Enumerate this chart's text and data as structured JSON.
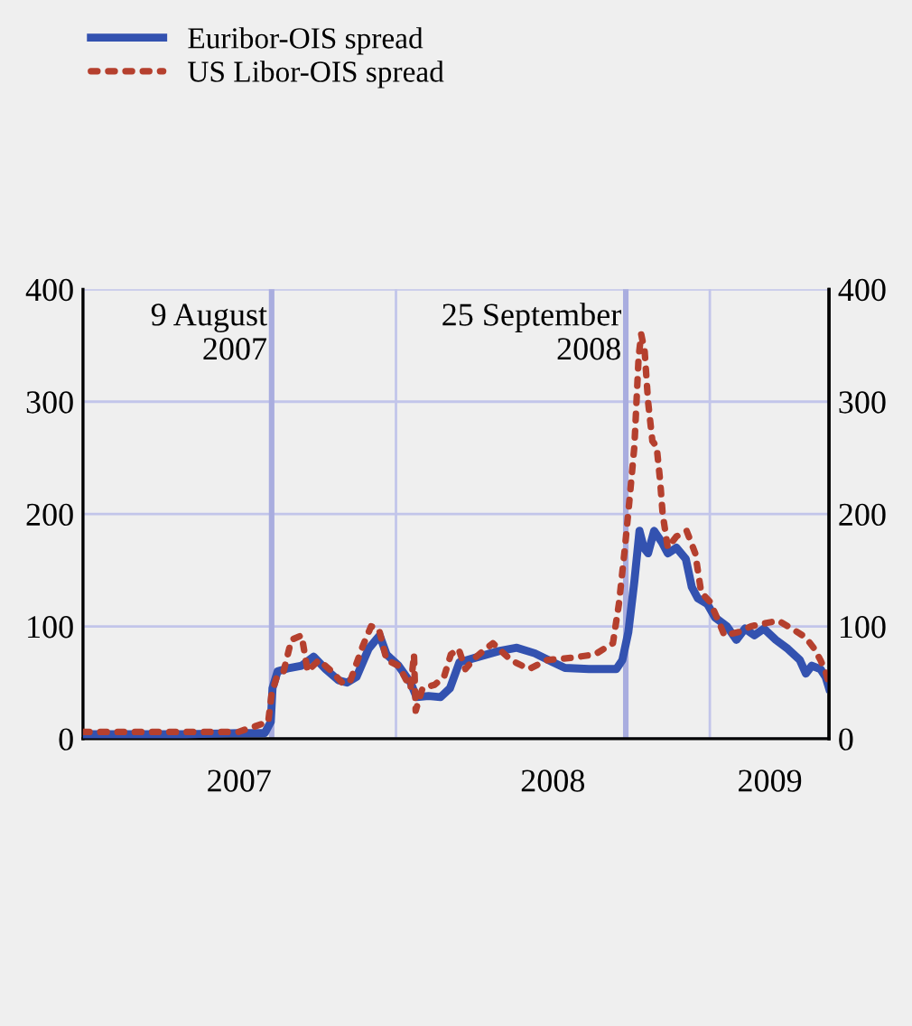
{
  "chart_data": {
    "type": "line",
    "series": [
      {
        "name": "Euribor-OIS spread",
        "color": "#3352b0",
        "line_style": "solid",
        "x": [
          "2007-01-01",
          "2007-03-01",
          "2007-05-01",
          "2007-07-01",
          "2007-08-01",
          "2007-08-08",
          "2007-08-10",
          "2007-08-16",
          "2007-08-30",
          "2007-09-13",
          "2007-09-27",
          "2007-10-11",
          "2007-10-26",
          "2007-11-05",
          "2007-11-16",
          "2007-11-30",
          "2007-12-13",
          "2007-12-21",
          "2008-01-04",
          "2008-01-18",
          "2008-01-25",
          "2008-02-08",
          "2008-02-22",
          "2008-03-04",
          "2008-03-15",
          "2008-04-02",
          "2008-04-30",
          "2008-05-21",
          "2008-06-11",
          "2008-07-02",
          "2008-07-16",
          "2008-08-13",
          "2008-09-14",
          "2008-09-21",
          "2008-09-28",
          "2008-10-05",
          "2008-10-11",
          "2008-10-16",
          "2008-10-21",
          "2008-10-28",
          "2008-11-06",
          "2008-11-13",
          "2008-11-23",
          "2008-12-04",
          "2008-12-11",
          "2008-12-18",
          "2008-12-29",
          "2009-01-07",
          "2009-01-21",
          "2009-02-01",
          "2009-02-11",
          "2009-02-22",
          "2009-03-05",
          "2009-03-19",
          "2009-04-02",
          "2009-04-16",
          "2009-04-23",
          "2009-04-30",
          "2009-05-10",
          "2009-05-16",
          "2009-05-20"
        ],
        "values": [
          4,
          4,
          4,
          5,
          5,
          15,
          45,
          60,
          63,
          65,
          73,
          62,
          52,
          50,
          55,
          80,
          92,
          75,
          65,
          50,
          37,
          38,
          37,
          45,
          68,
          72,
          78,
          81,
          76,
          68,
          63,
          62,
          62,
          70,
          95,
          140,
          185,
          170,
          165,
          185,
          175,
          165,
          170,
          160,
          135,
          125,
          120,
          108,
          100,
          88,
          98,
          92,
          98,
          88,
          80,
          70,
          58,
          65,
          62,
          55,
          45
        ]
      },
      {
        "name": "US Libor-OIS spread",
        "color": "#b5402e",
        "line_style": "dotted",
        "x": [
          "2007-01-01",
          "2007-03-01",
          "2007-05-01",
          "2007-07-01",
          "2007-08-05",
          "2007-08-09",
          "2007-08-15",
          "2007-08-23",
          "2007-09-01",
          "2007-09-13",
          "2007-09-20",
          "2007-10-03",
          "2007-10-18",
          "2007-10-30",
          "2007-11-08",
          "2007-11-23",
          "2007-12-03",
          "2007-12-12",
          "2007-12-21",
          "2008-01-04",
          "2008-01-18",
          "2008-01-22",
          "2008-01-24",
          "2008-02-01",
          "2008-02-15",
          "2008-02-26",
          "2008-03-05",
          "2008-03-14",
          "2008-03-22",
          "2008-04-02",
          "2008-04-23",
          "2008-05-14",
          "2008-06-04",
          "2008-06-25",
          "2008-07-23",
          "2008-08-20",
          "2008-09-10",
          "2008-09-17",
          "2008-09-24",
          "2008-09-29",
          "2008-10-05",
          "2008-10-10",
          "2008-10-13",
          "2008-10-17",
          "2008-10-21",
          "2008-10-26",
          "2008-10-31",
          "2008-11-04",
          "2008-11-07",
          "2008-11-13",
          "2008-11-23",
          "2008-12-05",
          "2008-12-15",
          "2008-12-22",
          "2009-01-01",
          "2009-01-11",
          "2009-01-18",
          "2009-02-04",
          "2009-02-18",
          "2009-03-08",
          "2009-03-22",
          "2009-04-09",
          "2009-04-23",
          "2009-05-03",
          "2009-05-10",
          "2009-05-16",
          "2009-05-20"
        ],
        "values": [
          6,
          6,
          6,
          6,
          15,
          40,
          55,
          60,
          88,
          92,
          60,
          70,
          60,
          50,
          50,
          82,
          100,
          98,
          70,
          65,
          45,
          75,
          25,
          45,
          48,
          55,
          75,
          80,
          62,
          72,
          85,
          70,
          62,
          70,
          72,
          75,
          85,
          120,
          170,
          210,
          260,
          340,
          360,
          345,
          300,
          265,
          260,
          230,
          200,
          170,
          180,
          185,
          165,
          130,
          122,
          105,
          92,
          95,
          100,
          103,
          105,
          97,
          90,
          80,
          70,
          60,
          48
        ]
      }
    ],
    "xlim": [
      "2007-01-01",
      "2009-05-20"
    ],
    "xticks": [
      {
        "value": "2007-01-01",
        "label": null
      },
      {
        "value": "2007-07-02",
        "label": "2007"
      },
      {
        "value": "2008-01-01",
        "label": null
      },
      {
        "value": "2008-07-02",
        "label": "2008"
      },
      {
        "value": "2009-01-01",
        "label": null
      },
      {
        "value": "2009-03-12",
        "label": "2009"
      }
    ],
    "ylim": [
      0,
      400
    ],
    "yticks": [
      0,
      100,
      200,
      300,
      400
    ],
    "y2lim": [
      0,
      400
    ],
    "y2ticks": [
      0,
      100,
      200,
      300,
      400
    ],
    "ref_lines": [
      {
        "axis": "x",
        "value": "2007-08-09",
        "label": "9 August\n2007",
        "color": "#a9addf"
      },
      {
        "axis": "x",
        "value": "2008-09-25",
        "label": "25 September\n2008",
        "color": "#a9addf"
      }
    ],
    "grid": true,
    "legend": "top left"
  }
}
